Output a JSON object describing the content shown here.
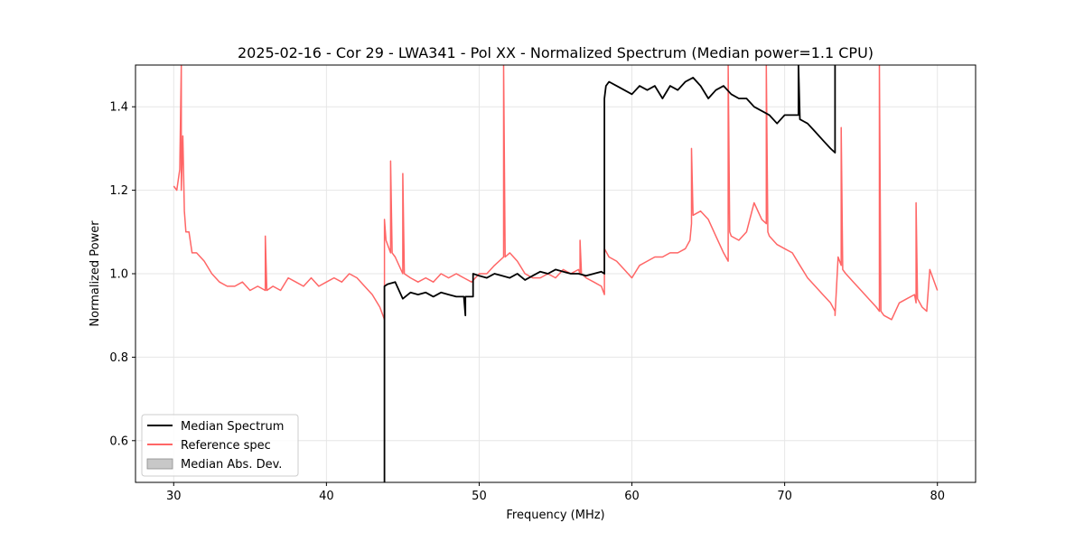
{
  "chart_data": {
    "type": "line",
    "title": "2025-02-16 - Cor 29 - LWA341 - Pol XX - Normalized Spectrum (Median power=1.1 CPU)",
    "xlabel": "Frequency (MHz)",
    "ylabel": "Normalized Power",
    "xlim": [
      27.5,
      82.5
    ],
    "ylim": [
      0.5,
      1.5
    ],
    "xticks": [
      30,
      40,
      50,
      60,
      70,
      80
    ],
    "yticks": [
      0.6,
      0.8,
      1.0,
      1.2,
      1.4
    ],
    "xtick_labels": [
      "30",
      "40",
      "50",
      "60",
      "70",
      "80"
    ],
    "ytick_labels": [
      "0.6",
      "0.8",
      "1.0",
      "1.2",
      "1.4"
    ],
    "grid": true,
    "legend_position": "lower-left",
    "series": [
      {
        "name": "Median Spectrum",
        "color": "#000000",
        "x": [
          43.8,
          43.8,
          44.0,
          44.5,
          45.0,
          45.5,
          46.0,
          46.5,
          47.0,
          47.5,
          48.0,
          48.5,
          49.0,
          49.1,
          49.1,
          49.2,
          49.6,
          49.6,
          50.0,
          50.5,
          51.0,
          51.5,
          52.0,
          52.5,
          53.0,
          53.5,
          54.0,
          54.5,
          55.0,
          55.5,
          56.0,
          56.5,
          57.0,
          57.5,
          58.0,
          58.2,
          58.2,
          58.3,
          58.5,
          59.0,
          59.5,
          60.0,
          60.5,
          61.0,
          61.5,
          62.0,
          62.5,
          63.0,
          63.5,
          64.0,
          64.5,
          65.0,
          65.5,
          66.0,
          66.5,
          67.0,
          67.5,
          68.0,
          68.5,
          69.0,
          69.5,
          70.0,
          70.5,
          70.9,
          70.9,
          71.0,
          71.5,
          72.0,
          72.5,
          73.0,
          73.3,
          73.3
        ],
        "y": [
          0.5,
          0.97,
          0.975,
          0.98,
          0.94,
          0.955,
          0.95,
          0.955,
          0.945,
          0.955,
          0.95,
          0.945,
          0.945,
          0.9,
          0.945,
          0.945,
          0.945,
          1.0,
          0.995,
          0.99,
          1.0,
          0.995,
          0.99,
          1.0,
          0.985,
          0.995,
          1.005,
          1.0,
          1.01,
          1.005,
          1.0,
          1.0,
          0.995,
          1.0,
          1.005,
          1.0,
          1.42,
          1.45,
          1.46,
          1.45,
          1.44,
          1.43,
          1.45,
          1.44,
          1.45,
          1.42,
          1.45,
          1.44,
          1.46,
          1.47,
          1.45,
          1.42,
          1.44,
          1.45,
          1.43,
          1.42,
          1.42,
          1.4,
          1.39,
          1.38,
          1.36,
          1.38,
          1.38,
          1.38,
          1.5,
          1.37,
          1.36,
          1.34,
          1.32,
          1.3,
          1.29,
          1.5
        ]
      },
      {
        "name": "Reference spec",
        "color": "#ff6666",
        "x": [
          30.0,
          30.2,
          30.4,
          30.5,
          30.5,
          30.6,
          30.7,
          30.8,
          31.0,
          31.2,
          31.5,
          32.0,
          32.5,
          33.0,
          33.5,
          34.0,
          34.5,
          35.0,
          35.5,
          36.0,
          36.0,
          36.1,
          36.5,
          37.0,
          37.5,
          38.0,
          38.5,
          39.0,
          39.5,
          40.0,
          40.5,
          41.0,
          41.5,
          42.0,
          42.5,
          43.0,
          43.5,
          43.8,
          43.8,
          43.9,
          44.2,
          44.2,
          44.3,
          44.5,
          45.0,
          45.0,
          45.1,
          45.5,
          46.0,
          46.5,
          47.0,
          47.5,
          48.0,
          48.5,
          49.0,
          49.5,
          50.0,
          50.5,
          51.0,
          51.6,
          51.6,
          51.7,
          52.0,
          52.5,
          53.0,
          53.5,
          54.0,
          54.5,
          55.0,
          55.5,
          56.0,
          56.5,
          56.6,
          56.6,
          56.7,
          57.0,
          57.5,
          58.0,
          58.2,
          58.2,
          58.5,
          59.0,
          59.5,
          60.0,
          60.5,
          61.0,
          61.5,
          62.0,
          62.5,
          63.0,
          63.5,
          63.8,
          63.9,
          63.9,
          64.0,
          64.5,
          65.0,
          65.5,
          66.0,
          66.3,
          66.3,
          66.4,
          66.5,
          67.0,
          67.5,
          68.0,
          68.5,
          68.8,
          68.8,
          68.9,
          69.0,
          69.5,
          70.0,
          70.5,
          71.0,
          71.5,
          72.0,
          72.5,
          73.0,
          73.3,
          73.3,
          73.5,
          73.7,
          73.7,
          73.8,
          74.0,
          74.5,
          75.0,
          75.5,
          76.0,
          76.2,
          76.2,
          76.3,
          76.5,
          77.0,
          77.5,
          78.0,
          78.5,
          78.6,
          78.6,
          78.7,
          79.0,
          79.3,
          79.5,
          80.0
        ],
        "y": [
          1.21,
          1.2,
          1.25,
          1.5,
          1.2,
          1.33,
          1.15,
          1.1,
          1.1,
          1.05,
          1.05,
          1.03,
          1.0,
          0.98,
          0.97,
          0.97,
          0.98,
          0.96,
          0.97,
          0.96,
          1.09,
          0.96,
          0.97,
          0.96,
          0.99,
          0.98,
          0.97,
          0.99,
          0.97,
          0.98,
          0.99,
          0.98,
          1.0,
          0.99,
          0.97,
          0.95,
          0.92,
          0.89,
          1.13,
          1.08,
          1.05,
          1.27,
          1.05,
          1.04,
          1.0,
          1.24,
          1.0,
          0.99,
          0.98,
          0.99,
          0.98,
          1.0,
          0.99,
          1.0,
          0.99,
          0.98,
          1.0,
          1.0,
          1.02,
          1.04,
          1.5,
          1.04,
          1.05,
          1.03,
          1.0,
          0.99,
          0.99,
          1.0,
          0.99,
          1.01,
          1.0,
          1.01,
          1.0,
          1.08,
          1.0,
          0.99,
          0.98,
          0.97,
          0.95,
          1.06,
          1.04,
          1.03,
          1.01,
          0.99,
          1.02,
          1.03,
          1.04,
          1.04,
          1.05,
          1.05,
          1.06,
          1.08,
          1.12,
          1.3,
          1.14,
          1.15,
          1.13,
          1.09,
          1.05,
          1.03,
          1.5,
          1.1,
          1.09,
          1.08,
          1.1,
          1.17,
          1.13,
          1.12,
          1.5,
          1.1,
          1.09,
          1.07,
          1.06,
          1.05,
          1.02,
          0.99,
          0.97,
          0.95,
          0.93,
          0.91,
          0.9,
          1.04,
          1.02,
          1.35,
          1.01,
          1.0,
          0.98,
          0.96,
          0.94,
          0.92,
          0.91,
          1.5,
          0.91,
          0.9,
          0.89,
          0.93,
          0.94,
          0.95,
          0.93,
          1.17,
          0.94,
          0.92,
          0.91,
          1.01,
          0.96
        ]
      }
    ],
    "band": {
      "name": "Median Abs. Dev.",
      "color": "#c8c8c8",
      "x": [],
      "low": [],
      "high": []
    }
  }
}
